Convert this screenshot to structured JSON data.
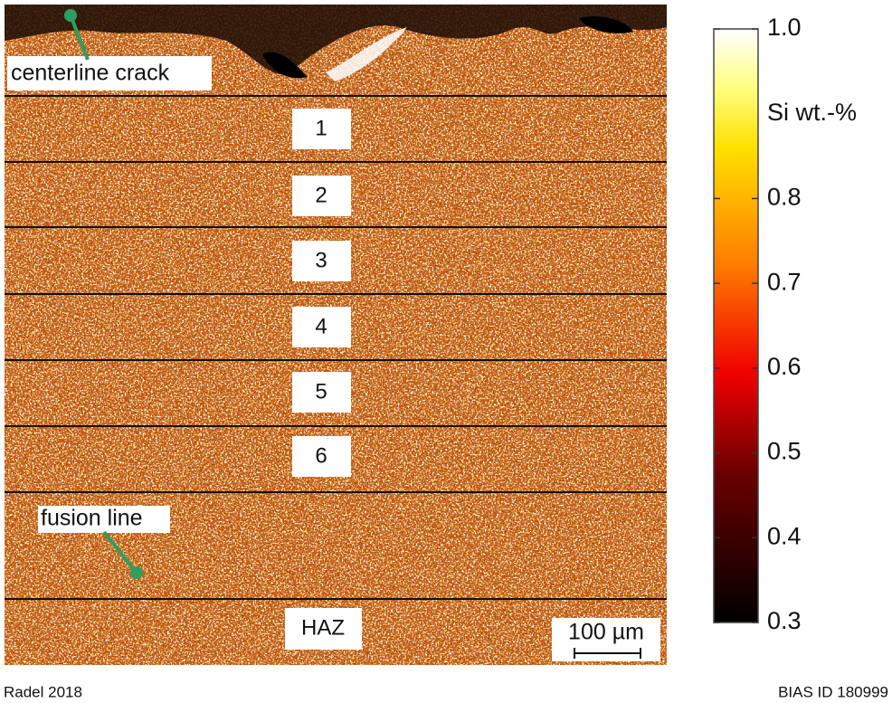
{
  "image": {
    "annotations": {
      "crack": "centerline crack",
      "fusion": "fusion line"
    },
    "zones": [
      "1",
      "2",
      "3",
      "4",
      "5",
      "6",
      "HAZ"
    ],
    "scale_bar": "100 µm"
  },
  "colorbar": {
    "label": "Si wt.-%",
    "lim": [
      0.3,
      1.0
    ],
    "ticks": [
      {
        "value": 1.0,
        "label": "1.0"
      },
      0.8,
      0.7,
      0.6,
      0.5,
      0.4,
      0.3
    ]
  },
  "footer": {
    "left": "Radel 2018",
    "right": "BIAS ID 180999"
  }
}
